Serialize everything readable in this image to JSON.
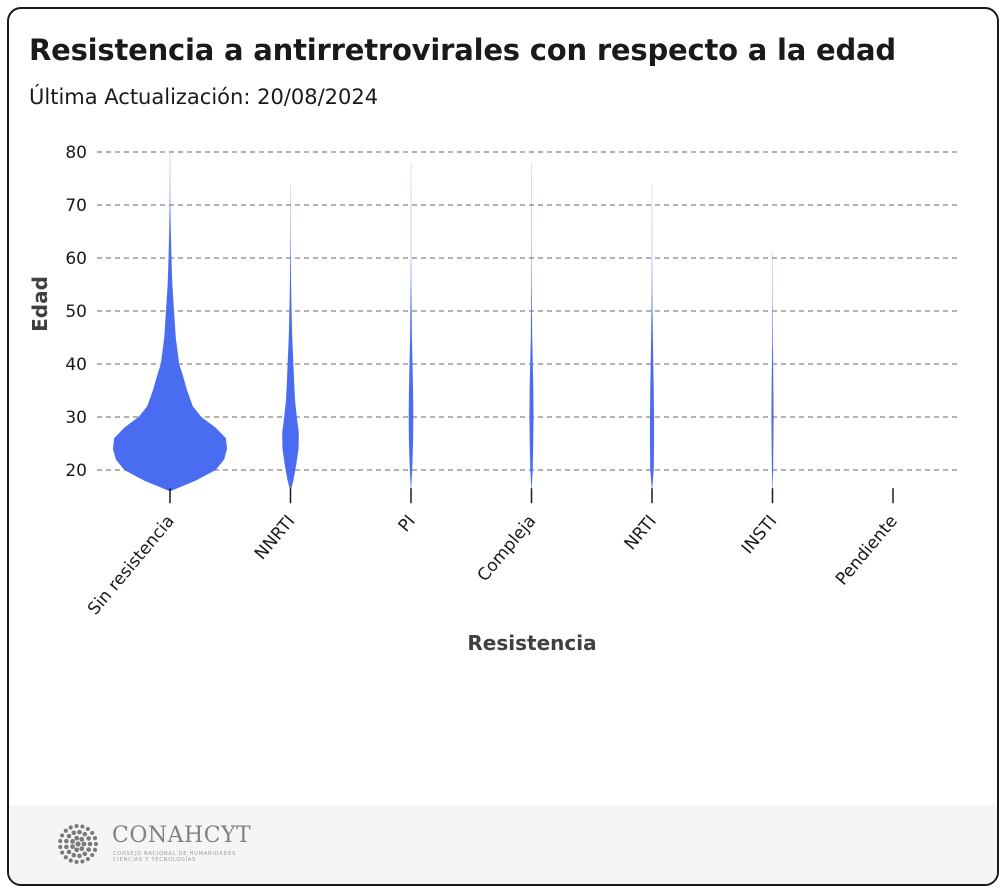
{
  "header": {
    "title": "Resistencia a antirretrovirales con respecto a la edad",
    "subtitle": "Última Actualización: 20/08/2024"
  },
  "footer": {
    "logo_icon": "conahcyt-dots-logo-icon",
    "logo_text": "CONAHCYT",
    "logo_subtext": "CONSEJO NACIONAL DE HUMANIDADES CIENCIAS Y TECNOLOGÍAS"
  },
  "chart_data": {
    "type": "violin",
    "title": "Resistencia a antirretrovirales con respecto a la edad",
    "subtitle": "Última Actualización: 20/08/2024",
    "xlabel": "Resistencia",
    "ylabel": "Edad",
    "categories": [
      "Sin resistencia",
      "NNRTI",
      "PI",
      "Compleja",
      "NRTI",
      "INSTI",
      "Pendiente"
    ],
    "ylim": [
      16,
      80
    ],
    "yticks": [
      20,
      30,
      40,
      50,
      60,
      70,
      80
    ],
    "grid": true,
    "grid_style": "dashed-horizontal",
    "color": "#4a6cf0",
    "series": [
      {
        "category": "Sin resistencia",
        "age_range": [
          16,
          80
        ],
        "density_profile": [
          [
            16,
            0
          ],
          [
            18,
            0.45
          ],
          [
            20,
            0.8
          ],
          [
            22,
            0.95
          ],
          [
            24,
            1.0
          ],
          [
            26,
            0.98
          ],
          [
            28,
            0.8
          ],
          [
            30,
            0.55
          ],
          [
            32,
            0.4
          ],
          [
            35,
            0.3
          ],
          [
            38,
            0.22
          ],
          [
            40,
            0.16
          ],
          [
            45,
            0.1
          ],
          [
            50,
            0.07
          ],
          [
            55,
            0.04
          ],
          [
            60,
            0.025
          ],
          [
            65,
            0.013
          ],
          [
            70,
            0.005
          ],
          [
            75,
            0.002
          ],
          [
            80,
            0
          ]
        ]
      },
      {
        "category": "NNRTI",
        "age_range": [
          16,
          74
        ],
        "density_profile": [
          [
            16,
            0
          ],
          [
            18,
            0.05
          ],
          [
            21,
            0.1
          ],
          [
            24,
            0.14
          ],
          [
            27,
            0.145
          ],
          [
            30,
            0.11
          ],
          [
            33,
            0.08
          ],
          [
            36,
            0.065
          ],
          [
            40,
            0.05
          ],
          [
            45,
            0.03
          ],
          [
            50,
            0.018
          ],
          [
            55,
            0.01
          ],
          [
            60,
            0.005
          ],
          [
            65,
            0.002
          ],
          [
            74,
            0
          ]
        ]
      },
      {
        "category": "PI",
        "age_range": [
          16,
          78
        ],
        "density_profile": [
          [
            16,
            0
          ],
          [
            20,
            0.02
          ],
          [
            25,
            0.035
          ],
          [
            30,
            0.04
          ],
          [
            35,
            0.035
          ],
          [
            40,
            0.025
          ],
          [
            45,
            0.015
          ],
          [
            50,
            0.01
          ],
          [
            55,
            0.005
          ],
          [
            60,
            0.002
          ],
          [
            70,
            0.001
          ],
          [
            78,
            0
          ]
        ]
      },
      {
        "category": "Compleja",
        "age_range": [
          16,
          78
        ],
        "density_profile": [
          [
            16,
            0
          ],
          [
            20,
            0.02
          ],
          [
            25,
            0.03
          ],
          [
            30,
            0.035
          ],
          [
            35,
            0.032
          ],
          [
            40,
            0.022
          ],
          [
            45,
            0.012
          ],
          [
            50,
            0.007
          ],
          [
            55,
            0.004
          ],
          [
            60,
            0.002
          ],
          [
            70,
            0.001
          ],
          [
            78,
            0
          ]
        ]
      },
      {
        "category": "NRTI",
        "age_range": [
          16,
          74
        ],
        "density_profile": [
          [
            16,
            0
          ],
          [
            20,
            0.03
          ],
          [
            25,
            0.035
          ],
          [
            30,
            0.035
          ],
          [
            35,
            0.03
          ],
          [
            40,
            0.022
          ],
          [
            45,
            0.015
          ],
          [
            50,
            0.008
          ],
          [
            55,
            0.004
          ],
          [
            60,
            0.002
          ],
          [
            74,
            0
          ]
        ]
      },
      {
        "category": "INSTI",
        "age_range": [
          16,
          61
        ],
        "density_profile": [
          [
            16,
            0
          ],
          [
            20,
            0.01
          ],
          [
            25,
            0.015
          ],
          [
            30,
            0.018
          ],
          [
            35,
            0.015
          ],
          [
            40,
            0.01
          ],
          [
            45,
            0.005
          ],
          [
            50,
            0.003
          ],
          [
            55,
            0.001
          ],
          [
            61,
            0
          ]
        ]
      },
      {
        "category": "Pendiente",
        "age_range": [
          16,
          16
        ],
        "density_profile": []
      }
    ]
  }
}
